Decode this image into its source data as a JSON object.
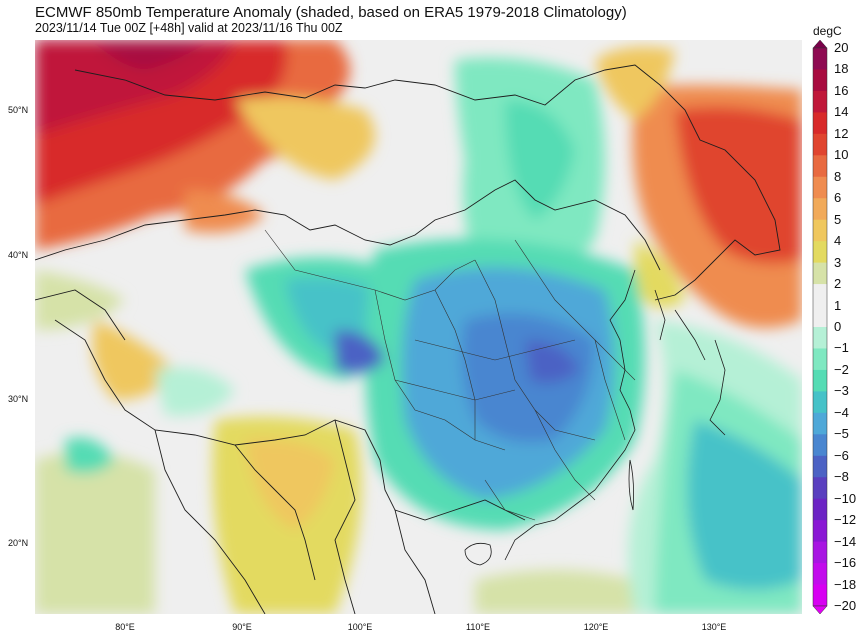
{
  "title": "ECMWF 850mb Temperature Anomaly (shaded, based on ERA5 1979-2018 Climatology)",
  "subtitle": "2023/11/14 Tue 00Z [+48h] valid at 2023/11/16 Thu 00Z",
  "map": {
    "lat_labels": [
      "50°N",
      "40°N",
      "30°N",
      "20°N"
    ],
    "lon_labels": [
      "80°E",
      "90°E",
      "100°E",
      "110°E",
      "120°E",
      "130°E"
    ]
  },
  "colorbar": {
    "units": "degC",
    "levels": [
      "20",
      "18",
      "16",
      "14",
      "12",
      "10",
      "8",
      "6",
      "5",
      "4",
      "3",
      "2",
      "1",
      "0",
      "−1",
      "−2",
      "−3",
      "−4",
      "−5",
      "−6",
      "−8",
      "−10",
      "−12",
      "−14",
      "−16",
      "−18",
      "−20"
    ],
    "colors": {
      "above_max": "#7a004a",
      "bins": [
        "#8e0a52",
        "#a80c3f",
        "#c0183a",
        "#d82a2a",
        "#e0452f",
        "#e86a40",
        "#ef8c50",
        "#f1aa5a",
        "#efc75e",
        "#e3da60",
        "#d6e2a8",
        "#efefef",
        "#efefef",
        "#b5f0d6",
        "#7fe8c1",
        "#55dcb4",
        "#46c2c8",
        "#4fa8d8",
        "#4a86d0",
        "#4c62c4",
        "#5a3fbf",
        "#6c24c4",
        "#8a18d4",
        "#a816e2",
        "#c20cec",
        "#d700f2"
      ],
      "below_min": "#e200f5"
    }
  }
}
